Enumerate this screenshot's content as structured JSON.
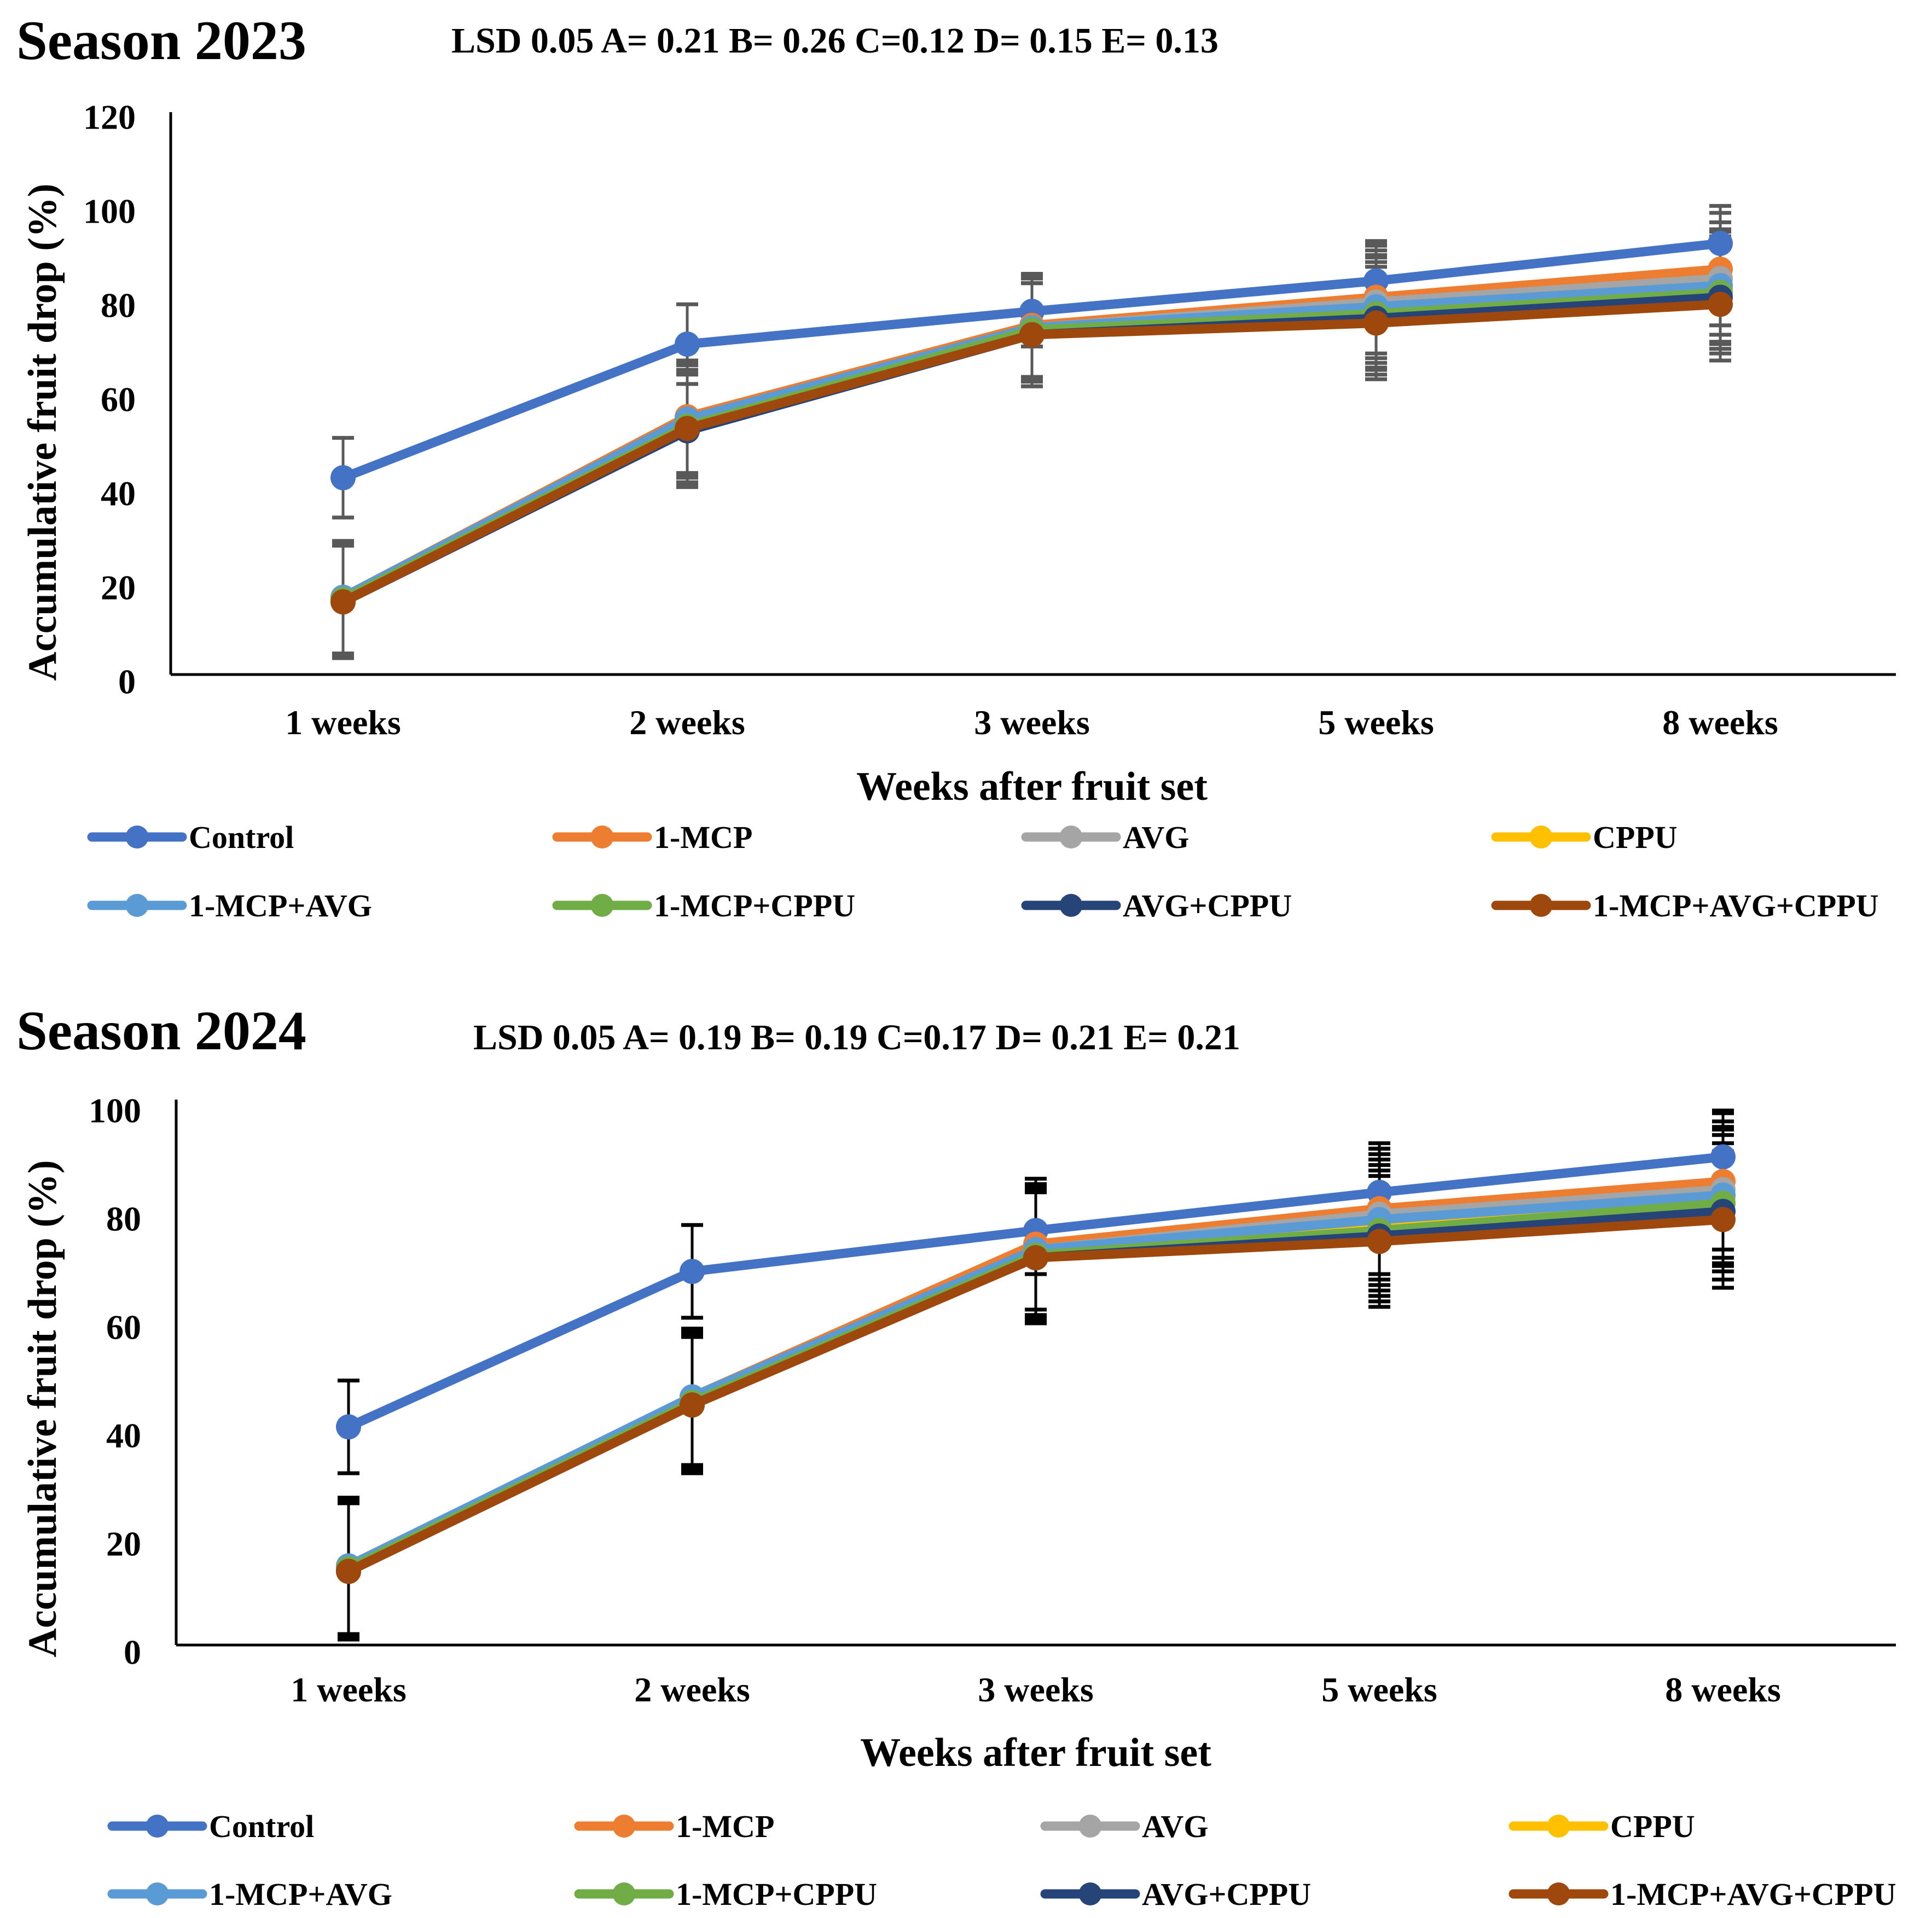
{
  "chart_data": [
    {
      "type": "line",
      "title": "Season 2023",
      "subtitle": "LSD 0.05 A= 0.21 B= 0.26 C=0.12 D= 0.15 E= 0.13",
      "xlabel": "Weeks after fruit set",
      "ylabel": "Accumulative fruit drop (%)",
      "categories": [
        "1 weeks",
        "2 weeks",
        "3 weeks",
        "5 weeks",
        "8 weeks"
      ],
      "ylim": [
        0,
        120
      ],
      "yticks": [
        "0",
        "20",
        "40",
        "60",
        "80",
        "100",
        "120"
      ],
      "grid": false,
      "legend_position": "bottom",
      "series": [
        {
          "name": "Control",
          "color": "#4472C4",
          "values": [
            42,
            70.5,
            77.5,
            84,
            92
          ],
          "err": [
            8.5,
            8.5,
            7.5,
            8,
            8
          ]
        },
        {
          "name": "1-MCP",
          "color": "#ED7D31",
          "values": [
            16.5,
            55,
            74.5,
            80.5,
            86.5
          ],
          "err": [
            12,
            12,
            11,
            12,
            12
          ]
        },
        {
          "name": "AVG",
          "color": "#A5A5A5",
          "values": [
            16,
            54,
            74,
            79.5,
            84.5
          ],
          "err": [
            12,
            12,
            11,
            12,
            12
          ]
        },
        {
          "name": "CPPU",
          "color": "#FFC000",
          "values": [
            16,
            53,
            72.5,
            77.5,
            82.5
          ],
          "err": [
            12,
            12,
            11,
            12,
            12
          ]
        },
        {
          "name": "1-MCP+AVG",
          "color": "#5B9BD5",
          "values": [
            16.5,
            54.5,
            74,
            78.5,
            83
          ],
          "err": [
            12,
            12,
            11,
            12,
            12
          ]
        },
        {
          "name": "1-MCP+CPPU",
          "color": "#70AD47",
          "values": [
            16,
            53,
            73.5,
            77,
            81.5
          ],
          "err": [
            12,
            12,
            11,
            12,
            12
          ]
        },
        {
          "name": "AVG+CPPU",
          "color": "#264478",
          "values": [
            15.5,
            52,
            72.5,
            76,
            80.5
          ],
          "err": [
            12,
            12,
            11,
            12,
            12
          ]
        },
        {
          "name": "1-MCP+AVG+CPPU",
          "color": "#9E480E",
          "values": [
            15.5,
            52.5,
            72.5,
            75,
            79
          ],
          "err": [
            12,
            12,
            11,
            12,
            12
          ]
        }
      ]
    },
    {
      "type": "line",
      "title": "Season 2024",
      "subtitle": "LSD 0.05 A= 0.19 B= 0.19 C=0.17 D= 0.21 E= 0.21",
      "xlabel": "Weeks after fruit set",
      "ylabel": "Accumulative fruit drop (%)",
      "categories": [
        "1 weeks",
        "2 weeks",
        "3 weeks",
        "5 weeks",
        "8 weeks"
      ],
      "ylim": [
        0,
        100
      ],
      "yticks": [
        "0",
        "20",
        "40",
        "60",
        "80",
        "100"
      ],
      "grid": false,
      "legend_position": "bottom",
      "series": [
        {
          "name": "Control",
          "color": "#4472C4",
          "values": [
            40,
            68.5,
            76,
            83,
            89.5
          ],
          "err": [
            8.5,
            8.5,
            8,
            8,
            8.5
          ]
        },
        {
          "name": "1-MCP",
          "color": "#ED7D31",
          "values": [
            14.5,
            45.5,
            73.5,
            80,
            85
          ],
          "err": [
            12.5,
            12.5,
            12,
            12,
            12.5
          ]
        },
        {
          "name": "AVG",
          "color": "#A5A5A5",
          "values": [
            14,
            45,
            72.5,
            79,
            83.5
          ],
          "err": [
            12.5,
            12.5,
            12,
            12,
            12.5
          ]
        },
        {
          "name": "CPPU",
          "color": "#FFC000",
          "values": [
            14,
            44,
            72,
            77,
            82
          ],
          "err": [
            12.5,
            12.5,
            12,
            12,
            12.5
          ]
        },
        {
          "name": "1-MCP+AVG",
          "color": "#5B9BD5",
          "values": [
            14.5,
            45.5,
            72.5,
            78,
            82.5
          ],
          "err": [
            12.5,
            12.5,
            12,
            12,
            12.5
          ]
        },
        {
          "name": "1-MCP+CPPU",
          "color": "#70AD47",
          "values": [
            14,
            44.5,
            71.5,
            76,
            81
          ],
          "err": [
            12.5,
            12.5,
            12,
            12,
            12.5
          ]
        },
        {
          "name": "AVG+CPPU",
          "color": "#264478",
          "values": [
            13.5,
            44,
            71,
            75,
            79.5
          ],
          "err": [
            12.5,
            12.5,
            12,
            12,
            12.5
          ]
        },
        {
          "name": "1-MCP+AVG+CPPU",
          "color": "#9E480E",
          "values": [
            13.5,
            44,
            71,
            74,
            78
          ],
          "err": [
            12.5,
            12.5,
            12,
            12,
            12.5
          ]
        }
      ]
    }
  ]
}
